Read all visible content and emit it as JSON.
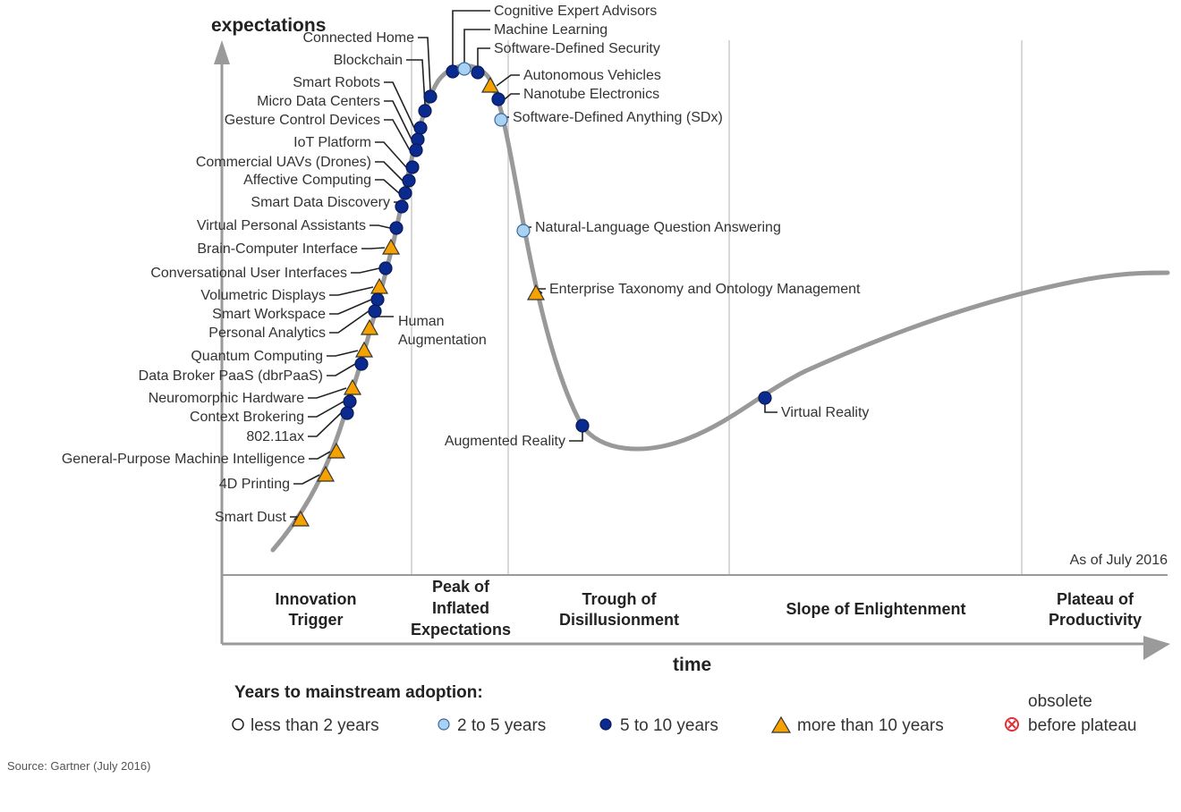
{
  "axes": {
    "y_label": "expectations",
    "x_label": "time"
  },
  "as_of": "As of July 2016",
  "phases": [
    {
      "lines": [
        "Innovation",
        "Trigger"
      ]
    },
    {
      "lines": [
        "Peak of",
        "Inflated",
        "Expectations"
      ]
    },
    {
      "lines": [
        "Trough of",
        "Disillusionment"
      ]
    },
    {
      "lines": [
        "Slope of Enlightenment"
      ]
    },
    {
      "lines": [
        "Plateau of",
        "Productivity"
      ]
    }
  ],
  "technologies": [
    {
      "name": "Connected Home",
      "adoption": "5 to 10 years"
    },
    {
      "name": "Blockchain",
      "adoption": "5 to 10 years"
    },
    {
      "name": "Smart Robots",
      "adoption": "5 to 10 years"
    },
    {
      "name": "Micro Data Centers",
      "adoption": "5 to 10 years"
    },
    {
      "name": "Gesture Control Devices",
      "adoption": "5 to 10 years"
    },
    {
      "name": "IoT Platform",
      "adoption": "5 to 10 years"
    },
    {
      "name": "Commercial UAVs (Drones)",
      "adoption": "5 to 10 years"
    },
    {
      "name": "Affective Computing",
      "adoption": "5 to 10 years"
    },
    {
      "name": "Smart Data Discovery",
      "adoption": "5 to 10 years"
    },
    {
      "name": "Virtual Personal Assistants",
      "adoption": "5 to 10 years"
    },
    {
      "name": "Brain-Computer Interface",
      "adoption": "more than 10 years"
    },
    {
      "name": "Conversational User Interfaces",
      "adoption": "5 to 10 years"
    },
    {
      "name": "Volumetric Displays",
      "adoption": "more than 10 years"
    },
    {
      "name": "Smart Workspace",
      "adoption": "5 to 10 years"
    },
    {
      "name": "Personal Analytics",
      "adoption": "5 to 10 years"
    },
    {
      "name": "Quantum Computing",
      "adoption": "more than 10 years"
    },
    {
      "name": "Data Broker PaaS (dbrPaaS)",
      "adoption": "5 to 10 years"
    },
    {
      "name": "Neuromorphic Hardware",
      "adoption": "more than 10 years"
    },
    {
      "name": "Context Brokering",
      "adoption": "5 to 10 years"
    },
    {
      "name": "802.11ax",
      "adoption": "5 to 10 years"
    },
    {
      "name": "General-Purpose Machine Intelligence",
      "adoption": "more than 10 years"
    },
    {
      "name": "4D Printing",
      "adoption": "more than 10 years"
    },
    {
      "name": "Smart Dust",
      "adoption": "more than 10 years"
    },
    {
      "name": "Cognitive Expert Advisors",
      "adoption": "5 to 10 years"
    },
    {
      "name": "Machine Learning",
      "adoption": "2 to 5 years"
    },
    {
      "name": "Software-Defined Security",
      "adoption": "5 to 10 years"
    },
    {
      "name": "Autonomous Vehicles",
      "adoption": "more than 10 years"
    },
    {
      "name": "Nanotube Electronics",
      "adoption": "5 to 10 years"
    },
    {
      "name": "Software-Defined Anything (SDx)",
      "adoption": "2 to 5 years"
    },
    {
      "name": "Natural-Language Question Answering",
      "adoption": "2 to 5 years"
    },
    {
      "name": "Enterprise Taxonomy and Ontology Management",
      "adoption": "more than 10 years"
    },
    {
      "name": "Augmented Reality",
      "adoption": "5 to 10 years"
    },
    {
      "name": "Virtual Reality",
      "adoption": "5 to 10 years"
    },
    {
      "name_lines": [
        "Human",
        "Augmentation"
      ],
      "adoption": "more than 10 years"
    }
  ],
  "legend": {
    "title": "Years to mainstream adoption:",
    "items": [
      "less than 2 years",
      "2 to 5 years",
      "5 to 10 years",
      "more than 10 years"
    ],
    "obsolete_lines": [
      "obsolete",
      "before plateau"
    ]
  },
  "colors": {
    "dark": "#0b2a8f",
    "light": "#a9d1f2",
    "triangle": "#f5a100",
    "obsolete": "#e0303a",
    "curve": "#999999"
  },
  "source": "Source: Gartner (July 2016)"
}
